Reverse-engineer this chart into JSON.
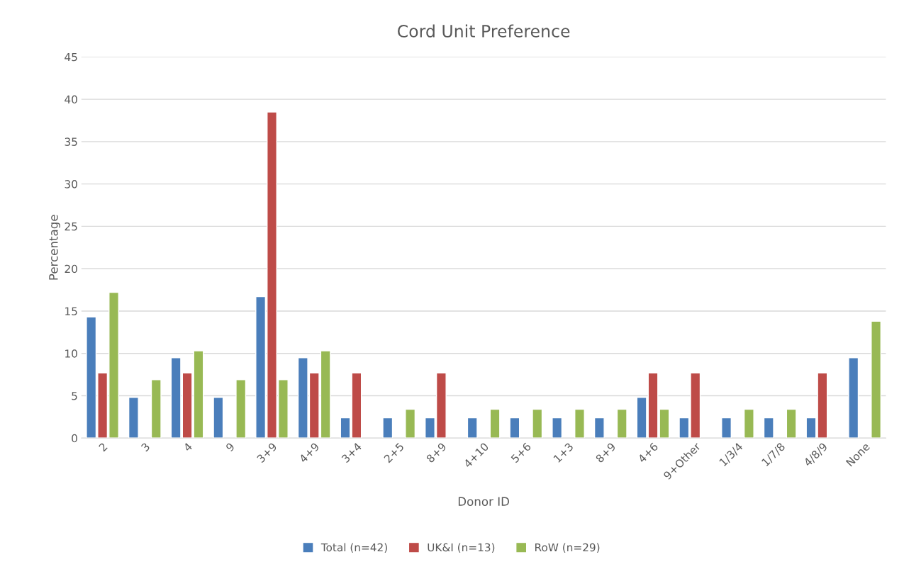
{
  "chart_data": {
    "type": "bar",
    "title": "Cord Unit Preference",
    "xlabel": "Donor ID",
    "ylabel": "Percentage",
    "categories": [
      "2",
      "3",
      "4",
      "9",
      "3+9",
      "4+9",
      "3+4",
      "2+5",
      "8+9",
      "4+10",
      "5+6",
      "1+3",
      "8+9",
      "4+6",
      "9+Other",
      "1/3/4",
      "1/7/8",
      "4/8/9",
      "None"
    ],
    "series": [
      {
        "name": "Total (n=42)",
        "color": "#4a7ebb",
        "values": [
          14.3,
          4.8,
          9.5,
          4.8,
          16.7,
          9.5,
          2.4,
          2.4,
          2.4,
          2.4,
          2.4,
          2.4,
          2.4,
          4.8,
          2.4,
          2.4,
          2.4,
          2.4,
          9.5
        ]
      },
      {
        "name": "UK&I (n=13)",
        "color": "#be4b48",
        "values": [
          7.7,
          null,
          7.7,
          null,
          38.5,
          7.7,
          7.7,
          null,
          7.7,
          null,
          null,
          null,
          null,
          7.7,
          7.7,
          null,
          null,
          7.7,
          null
        ]
      },
      {
        "name": "RoW (n=29)",
        "color": "#98b954",
        "values": [
          17.2,
          6.9,
          10.3,
          6.9,
          6.9,
          10.3,
          null,
          3.4,
          null,
          3.4,
          3.4,
          3.4,
          3.4,
          3.4,
          null,
          3.4,
          3.4,
          null,
          13.8
        ]
      }
    ],
    "ylim": [
      0,
      45
    ],
    "yticks": [
      0,
      5,
      10,
      15,
      20,
      25,
      30,
      35,
      40,
      45
    ],
    "grid": "y",
    "legend": "bottom"
  }
}
